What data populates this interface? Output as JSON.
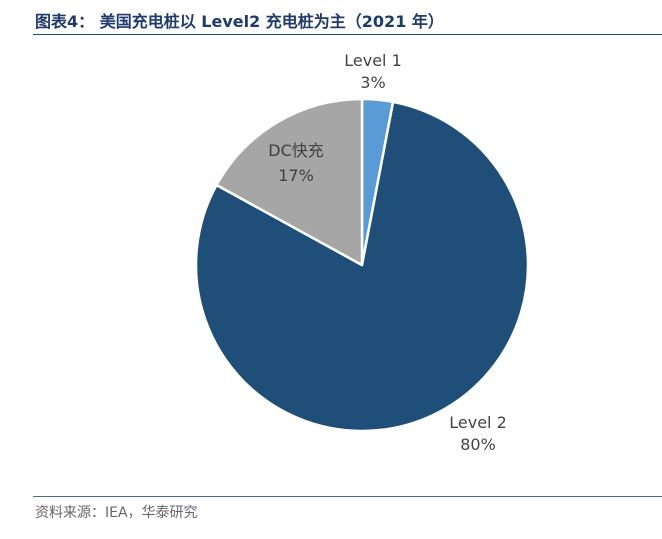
{
  "figure": {
    "title": "图表4： 美国充电桩以 Level2 充电桩为主（2021 年）",
    "source": "资料来源：IEA，华泰研究"
  },
  "chart_data": {
    "type": "pie",
    "title": "",
    "slices": [
      {
        "label": "Level 1",
        "value": 3,
        "value_label": "3%",
        "color": "#5b9bd5"
      },
      {
        "label": "Level 2",
        "value": 80,
        "value_label": "80%",
        "color": "#1f4e79"
      },
      {
        "label": "DC快充",
        "value": 17,
        "value_label": "17%",
        "color": "#a6a6a6"
      }
    ],
    "start_angle": "12 o'clock",
    "direction": "clockwise",
    "legend": "none"
  }
}
